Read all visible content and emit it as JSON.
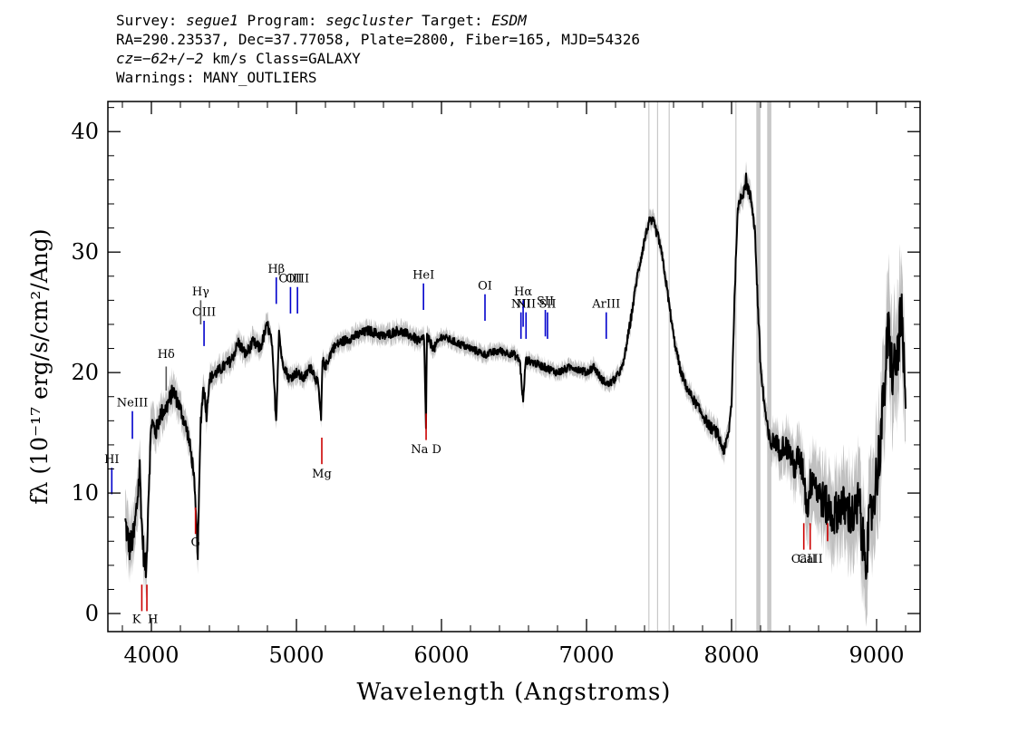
{
  "header": {
    "line1": {
      "survey_label": "Survey: ",
      "survey": "segue1",
      "program_label": " Program: ",
      "program": "segcluster",
      "target_label": " Target: ",
      "target": "ESDM"
    },
    "line2": "RA=290.23537, Dec=37.77058, Plate=2800, Fiber=165, MJD=54326",
    "line3": {
      "cz_label": "cz=",
      "cz": "−62+/−2",
      "rest": " km/s Class=GALAXY"
    },
    "line4": "Warnings: MANY_OUTLIERS"
  },
  "chart_data": {
    "type": "line",
    "xlabel": "Wavelength (Angstroms)",
    "ylabel": "fλ (10⁻¹⁷ erg/s/cm²/Ang)",
    "xlim": [
      3700,
      9300
    ],
    "ylim": [
      -1.5,
      42.5
    ],
    "x_ticks": [
      4000,
      5000,
      6000,
      7000,
      8000,
      9000
    ],
    "y_ticks": [
      0,
      10,
      20,
      30,
      40
    ],
    "x_tick_labels": [
      "4000",
      "5000",
      "6000",
      "7000",
      "8000",
      "9000"
    ],
    "y_tick_labels": [
      "0",
      "10",
      "20",
      "30",
      "40"
    ],
    "grid": false,
    "colors": {
      "spectrum": "#000000",
      "error_band": "#c0c0c0",
      "masked_lines": "#c8c8c8",
      "emission": "#0000cc",
      "absorption": "#cc0000",
      "label_line": "#555555"
    },
    "spectrum": {
      "x": [
        3820,
        3850,
        3880,
        3900,
        3920,
        3935,
        3950,
        3965,
        3980,
        4000,
        4030,
        4060,
        4100,
        4150,
        4200,
        4250,
        4290,
        4320,
        4340,
        4360,
        4380,
        4400,
        4450,
        4500,
        4550,
        4600,
        4650,
        4700,
        4750,
        4800,
        4830,
        4860,
        4880,
        4900,
        4950,
        5000,
        5050,
        5100,
        5150,
        5170,
        5180,
        5200,
        5250,
        5300,
        5400,
        5500,
        5600,
        5700,
        5800,
        5850,
        5880,
        5893,
        5900,
        5920,
        5950,
        6000,
        6100,
        6200,
        6300,
        6400,
        6500,
        6540,
        6563,
        6580,
        6600,
        6700,
        6800,
        6900,
        7000,
        7050,
        7100,
        7150,
        7200,
        7250,
        7300,
        7350,
        7400,
        7430,
        7460,
        7500,
        7530,
        7560,
        7600,
        7650,
        7700,
        7750,
        7800,
        7850,
        7900,
        7930,
        7950,
        7980,
        8000,
        8020,
        8040,
        8060,
        8080,
        8100,
        8120,
        8140,
        8160,
        8180,
        8200,
        8220,
        8250,
        8270,
        8300,
        8330,
        8360,
        8400,
        8430,
        8460,
        8500,
        8520,
        8540,
        8560,
        8600,
        8650,
        8700,
        8750,
        8800,
        8850,
        8880,
        8900,
        8930,
        8960,
        8990,
        9020,
        9050,
        9080,
        9110,
        9140,
        9170,
        9200
      ],
      "y": [
        7.5,
        5.5,
        6.5,
        9.0,
        12.0,
        7.0,
        4.5,
        3.5,
        10.0,
        16.0,
        15.0,
        16.5,
        17.0,
        18.5,
        17.0,
        15.0,
        12.0,
        5.0,
        16.0,
        19.0,
        16.5,
        19.5,
        20.0,
        20.5,
        21.0,
        22.5,
        21.5,
        22.5,
        22.0,
        24.0,
        22.5,
        16.0,
        23.5,
        21.0,
        19.5,
        20.0,
        19.5,
        20.5,
        19.0,
        16.0,
        21.0,
        20.5,
        22.0,
        22.5,
        23.0,
        23.5,
        23.0,
        23.5,
        23.0,
        22.5,
        23.0,
        15.5,
        23.0,
        22.5,
        22.0,
        23.0,
        22.5,
        22.0,
        21.5,
        21.8,
        21.5,
        21.0,
        17.5,
        21.0,
        21.0,
        20.5,
        20.0,
        20.5,
        20.0,
        20.5,
        19.5,
        19.0,
        19.5,
        20.5,
        24.0,
        28.0,
        31.0,
        32.5,
        32.5,
        31.0,
        29.0,
        26.5,
        23.0,
        20.0,
        18.5,
        17.5,
        16.5,
        15.5,
        15.0,
        14.0,
        13.5,
        15.0,
        17.5,
        26.0,
        33.0,
        34.5,
        35.0,
        36.0,
        35.0,
        34.0,
        32.0,
        26.0,
        20.5,
        18.0,
        15.0,
        14.0,
        14.5,
        13.5,
        14.0,
        13.5,
        12.0,
        13.0,
        11.5,
        8.5,
        10.5,
        11.5,
        10.0,
        9.0,
        8.0,
        9.0,
        8.5,
        8.0,
        9.5,
        6.0,
        5.0,
        8.0,
        10.5,
        13.5,
        18.0,
        23.5,
        20.0,
        21.0,
        25.0,
        17.0
      ],
      "noise_sigma": [
        1.6,
        1.6,
        1.5,
        1.5,
        1.5,
        1.4,
        1.4,
        1.4,
        1.3,
        1.2,
        1.0,
        1.0,
        0.9,
        0.9,
        0.8,
        0.8,
        0.8,
        0.8,
        0.8,
        0.7,
        0.7,
        0.6,
        0.6,
        0.6,
        0.6,
        0.6,
        0.6,
        0.6,
        0.6,
        0.6,
        0.5,
        0.5,
        0.5,
        0.5,
        0.5,
        0.5,
        0.5,
        0.5,
        0.5,
        0.5,
        0.5,
        0.5,
        0.5,
        0.5,
        0.5,
        0.5,
        0.5,
        0.5,
        0.5,
        0.5,
        0.5,
        0.5,
        0.5,
        0.5,
        0.5,
        0.4,
        0.4,
        0.4,
        0.4,
        0.4,
        0.4,
        0.4,
        0.4,
        0.4,
        0.4,
        0.4,
        0.4,
        0.4,
        0.4,
        0.4,
        0.4,
        0.4,
        0.4,
        0.4,
        0.5,
        0.5,
        0.5,
        0.5,
        0.5,
        0.5,
        0.5,
        0.5,
        0.5,
        0.5,
        0.5,
        0.5,
        0.5,
        0.6,
        0.6,
        0.6,
        0.6,
        0.6,
        0.6,
        0.6,
        0.6,
        0.6,
        0.7,
        0.7,
        0.7,
        0.7,
        0.7,
        0.8,
        0.8,
        0.9,
        0.9,
        1.0,
        1.0,
        1.1,
        1.2,
        1.3,
        1.4,
        1.5,
        1.6,
        1.7,
        1.8,
        1.9,
        2.0,
        2.1,
        2.2,
        2.3,
        2.4,
        2.5,
        2.6,
        2.7,
        2.8,
        2.9,
        3.0,
        3.0,
        3.0,
        3.0,
        3.0,
        3.0,
        3.0,
        3.0
      ]
    },
    "masked_regions": [
      7430,
      7490,
      7570,
      8030,
      8180,
      8190,
      8255,
      8265
    ],
    "emission_lines": [
      {
        "label": "NeIII",
        "x": 3869,
        "y1": 14.5,
        "y2": 16.8,
        "label_y": 17.2
      },
      {
        "label": "OIII",
        "x": 4363,
        "y1": 22.2,
        "y2": 24.3,
        "label_y": 24.7
      },
      {
        "label": "Hβ",
        "x": 4861,
        "y1": 25.7,
        "y2": 27.9,
        "label_y": 28.3
      },
      {
        "label": "OIII",
        "x": 4959,
        "y1": 24.9,
        "y2": 27.1,
        "label_y": 27.5
      },
      {
        "label": "OIII",
        "x": 5007,
        "y1": 24.9,
        "y2": 27.1,
        "label_y": 27.5
      },
      {
        "label": "HeI",
        "x": 5876,
        "y1": 25.2,
        "y2": 27.4,
        "label_y": 27.8
      },
      {
        "label": "OI",
        "x": 6300,
        "y1": 24.3,
        "y2": 26.5,
        "label_y": 26.9
      },
      {
        "label": "NII",
        "x": 6548,
        "y1": 22.8,
        "y2": 25.0,
        "label_y": 25.4
      },
      {
        "label": "Hα",
        "x": 6563,
        "y1": 23.8,
        "y2": 26.0,
        "label_y": 26.4
      },
      {
        "label": "NII",
        "x": 6583,
        "y1": 22.8,
        "y2": 25.0,
        "label_y": 25.4
      },
      {
        "label": "SII",
        "x": 6716,
        "y1": 23.0,
        "y2": 25.2,
        "label_y": 25.6
      },
      {
        "label": "SII",
        "x": 6731,
        "y1": 22.8,
        "y2": 25.0,
        "label_y": 25.4
      },
      {
        "label": "ArIII",
        "x": 7136,
        "y1": 22.8,
        "y2": 25.0,
        "label_y": 25.4
      },
      {
        "label": "HI",
        "x": 3727,
        "y1": 9.9,
        "y2": 12.1,
        "label_y": 12.5
      }
    ],
    "balmer_marks": [
      {
        "label": "Hγ",
        "x": 4340,
        "y1": 24.0,
        "y2": 26.0,
        "label_y": 26.4
      },
      {
        "label": "Hδ",
        "x": 4102,
        "y1": 18.5,
        "y2": 20.5,
        "label_y": 21.2
      }
    ],
    "absorption_lines": [
      {
        "label": "K",
        "x": 3934,
        "y1": 0.2,
        "y2": 2.4,
        "label_y": -0.8,
        "label_anchor": "end"
      },
      {
        "label": "H",
        "x": 3969,
        "y1": 0.2,
        "y2": 2.4,
        "label_y": -0.8,
        "label_anchor": "start"
      },
      {
        "label": "G",
        "x": 4304,
        "y1": 6.6,
        "y2": 8.8,
        "label_y": 5.6
      },
      {
        "label": "Mg",
        "x": 5175,
        "y1": 12.4,
        "y2": 14.6,
        "label_y": 11.3
      },
      {
        "label": "Na D",
        "x": 5894,
        "y1": 14.4,
        "y2": 16.6,
        "label_y": 13.3
      },
      {
        "label": "CaII",
        "x": 8498,
        "y1": 5.3,
        "y2": 7.5,
        "label_y": 4.2
      },
      {
        "label": "CaII",
        "x": 8542,
        "y1": 5.3,
        "y2": 7.5,
        "label_y": 4.2
      },
      {
        "label": "CaII",
        "x": 8662,
        "y1": 6.0,
        "y2": 7.5,
        "label_y": null
      }
    ]
  }
}
